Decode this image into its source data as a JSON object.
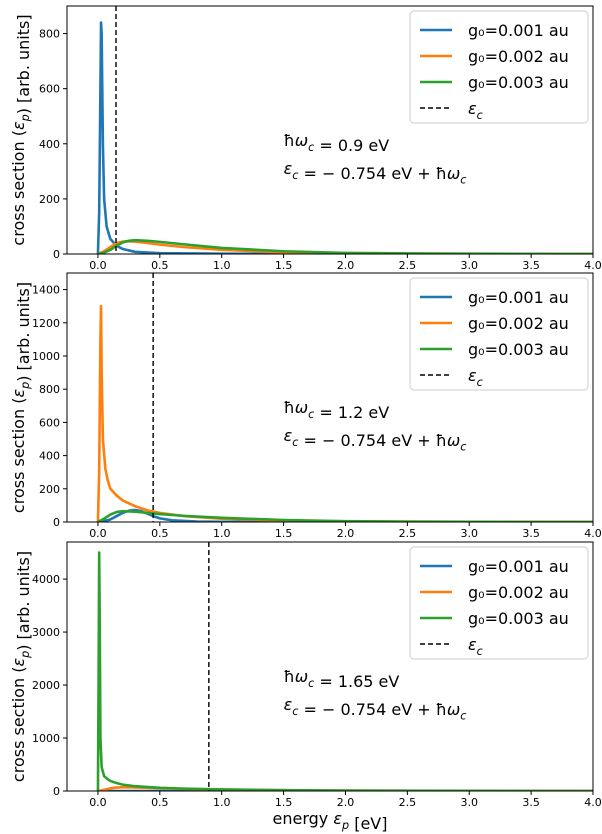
{
  "chart_data": [
    {
      "type": "line",
      "ylabel": "cross section (ε_p) [arb. units]",
      "xlabel": "",
      "xlim": [
        -0.25,
        4.0
      ],
      "ylim": [
        0,
        900
      ],
      "xticks": [
        "0.0",
        "0.5",
        "1.0",
        "1.5",
        "2.0",
        "2.5",
        "3.0",
        "3.5",
        "4.0"
      ],
      "yticks": [
        "0",
        "200",
        "400",
        "600",
        "800"
      ],
      "ytick_values": [
        0,
        200,
        400,
        600,
        800
      ],
      "legend": [
        "g₀=0.001 au",
        "g₀=0.002 au",
        "g₀=0.003 au",
        "ε_c"
      ],
      "legend_position": "top-right",
      "annotation": [
        "ħω_c = 0.9 eV",
        "ε_c = − 0.754 eV + ħω_c"
      ],
      "vline_x": 0.146,
      "series": [
        {
          "name": "g₀=0.001 au",
          "color": "#1f77b4",
          "x": [
            0.0,
            0.01,
            0.02,
            0.025,
            0.03,
            0.035,
            0.04,
            0.05,
            0.07,
            0.1,
            0.15,
            0.2,
            0.3,
            0.5,
            1.0,
            2.0,
            4.0
          ],
          "values": [
            0,
            150,
            600,
            840,
            800,
            600,
            400,
            200,
            100,
            55,
            30,
            18,
            8,
            3,
            1,
            0,
            0
          ]
        },
        {
          "name": "g₀=0.002 au",
          "color": "#ff7f0e",
          "x": [
            0.0,
            0.05,
            0.1,
            0.15,
            0.2,
            0.25,
            0.3,
            0.4,
            0.5,
            0.7,
            1.0,
            1.5,
            2.0,
            2.5,
            3.0,
            4.0
          ],
          "values": [
            0,
            10,
            25,
            40,
            45,
            46,
            45,
            40,
            34,
            25,
            15,
            6,
            2,
            1,
            0,
            0
          ]
        },
        {
          "name": "g₀=0.003 au",
          "color": "#2ca02c",
          "x": [
            0.0,
            0.05,
            0.1,
            0.15,
            0.2,
            0.25,
            0.3,
            0.4,
            0.5,
            0.7,
            1.0,
            1.5,
            2.0,
            2.5,
            3.0,
            4.0
          ],
          "values": [
            0,
            5,
            15,
            30,
            42,
            48,
            50,
            48,
            44,
            35,
            22,
            10,
            4,
            2,
            1,
            0
          ]
        }
      ]
    },
    {
      "type": "line",
      "ylabel": "cross section (ε_p) [arb. units]",
      "xlabel": "",
      "xlim": [
        -0.25,
        4.0
      ],
      "ylim": [
        0,
        1500
      ],
      "xticks": [
        "0.0",
        "0.5",
        "1.0",
        "1.5",
        "2.0",
        "2.5",
        "3.0",
        "3.5",
        "4.0"
      ],
      "yticks": [
        "0",
        "200",
        "400",
        "600",
        "800",
        "1000",
        "1200",
        "1400"
      ],
      "ytick_values": [
        0,
        200,
        400,
        600,
        800,
        1000,
        1200,
        1400
      ],
      "legend": [
        "g₀=0.001 au",
        "g₀=0.002 au",
        "g₀=0.003 au",
        "ε_c"
      ],
      "legend_position": "top-right",
      "annotation": [
        "ħω_c = 1.2 eV",
        "ε_c = − 0.754 eV + ħω_c"
      ],
      "vline_x": 0.446,
      "series": [
        {
          "name": "g₀=0.001 au",
          "color": "#1f77b4",
          "x": [
            0.0,
            0.05,
            0.1,
            0.15,
            0.2,
            0.25,
            0.3,
            0.35,
            0.4,
            0.45,
            0.5,
            0.6,
            0.8,
            1.0,
            1.5,
            4.0
          ],
          "values": [
            0,
            5,
            15,
            35,
            55,
            68,
            72,
            65,
            50,
            35,
            22,
            10,
            3,
            1,
            0,
            0
          ]
        },
        {
          "name": "g₀=0.002 au",
          "color": "#ff7f0e",
          "x": [
            0.0,
            0.01,
            0.02,
            0.025,
            0.03,
            0.04,
            0.06,
            0.08,
            0.1,
            0.15,
            0.2,
            0.3,
            0.4,
            0.5,
            0.7,
            1.0,
            1.5,
            2.0,
            3.0,
            4.0
          ],
          "values": [
            0,
            300,
            1100,
            1300,
            900,
            500,
            320,
            250,
            200,
            160,
            130,
            95,
            70,
            55,
            35,
            20,
            8,
            3,
            1,
            0
          ]
        },
        {
          "name": "g₀=0.003 au",
          "color": "#2ca02c",
          "x": [
            0.0,
            0.05,
            0.1,
            0.15,
            0.2,
            0.3,
            0.4,
            0.5,
            0.7,
            1.0,
            1.5,
            2.0,
            2.5,
            3.0,
            4.0
          ],
          "values": [
            0,
            20,
            45,
            60,
            65,
            62,
            55,
            48,
            37,
            25,
            12,
            5,
            2,
            1,
            0
          ]
        }
      ]
    },
    {
      "type": "line",
      "ylabel": "cross section (ε_p) [arb. units]",
      "xlabel": "energy ε_p [eV]",
      "xlim": [
        -0.25,
        4.0
      ],
      "ylim": [
        0,
        4700
      ],
      "xticks": [
        "0.0",
        "0.5",
        "1.0",
        "1.5",
        "2.0",
        "2.5",
        "3.0",
        "3.5",
        "4.0"
      ],
      "yticks": [
        "0",
        "1000",
        "2000",
        "3000",
        "4000"
      ],
      "ytick_values": [
        0,
        1000,
        2000,
        3000,
        4000
      ],
      "legend": [
        "g₀=0.001 au",
        "g₀=0.002 au",
        "g₀=0.003 au",
        "ε_c"
      ],
      "legend_position": "top-right",
      "annotation": [
        "ħω_c = 1.65 eV",
        "ε_c = − 0.754 eV + ħω_c"
      ],
      "vline_x": 0.896,
      "series": [
        {
          "name": "g₀=0.001 au",
          "color": "#1f77b4",
          "x": [
            0.0,
            0.5,
            1.0,
            2.0,
            4.0
          ],
          "values": [
            0,
            0,
            0,
            0,
            0
          ]
        },
        {
          "name": "g₀=0.002 au",
          "color": "#ff7f0e",
          "x": [
            0.0,
            0.05,
            0.1,
            0.15,
            0.2,
            0.3,
            0.4,
            0.5,
            0.7,
            1.0,
            1.5,
            2.0,
            3.0,
            4.0
          ],
          "values": [
            0,
            20,
            50,
            65,
            70,
            68,
            60,
            52,
            40,
            28,
            15,
            7,
            2,
            0
          ]
        },
        {
          "name": "g₀=0.003 au",
          "color": "#2ca02c",
          "x": [
            0.0,
            0.005,
            0.01,
            0.015,
            0.02,
            0.03,
            0.05,
            0.08,
            0.1,
            0.15,
            0.2,
            0.3,
            0.5,
            0.7,
            1.0,
            1.5,
            2.0,
            3.0,
            4.0
          ],
          "values": [
            0,
            2000,
            4500,
            3000,
            1000,
            450,
            280,
            220,
            190,
            150,
            120,
            90,
            60,
            45,
            30,
            15,
            8,
            3,
            0
          ]
        }
      ]
    }
  ]
}
